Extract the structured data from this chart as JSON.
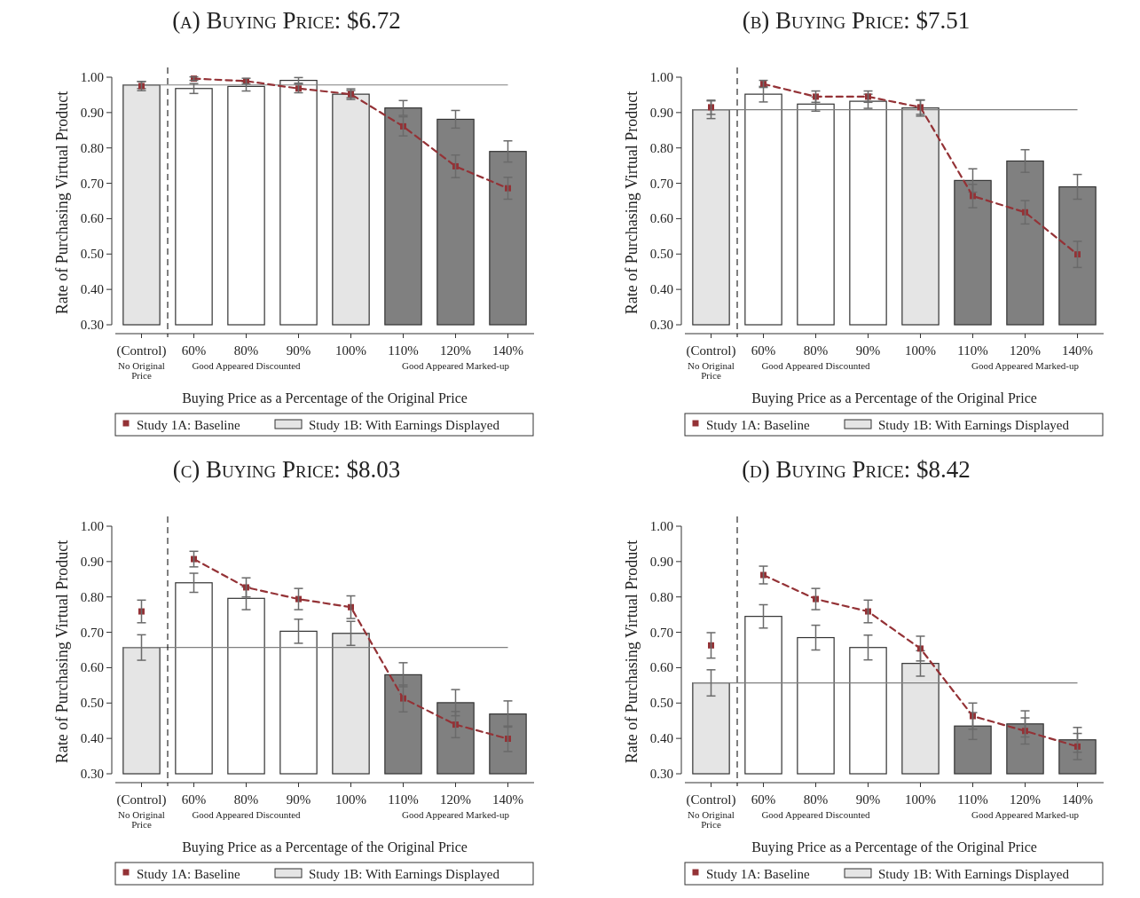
{
  "chart_data": [
    {
      "type": "bar",
      "title": "(a) Buying Price: $6.72",
      "xlabel": "Buying Price as a Percentage of the Original Price",
      "ylabel": "Rate of Purchasing Virtual Product",
      "categories": [
        "(Control)",
        "60%",
        "80%",
        "90%",
        "100%",
        "110%",
        "120%",
        "140%"
      ],
      "ylim": [
        0.3,
        1.0
      ],
      "yticks": [
        {
          "value": 0.3,
          "label": "0.30"
        },
        {
          "value": 0.4,
          "label": "0.40"
        },
        {
          "value": 0.5,
          "label": "0.50"
        },
        {
          "value": 0.6,
          "label": "0.60"
        },
        {
          "value": 0.7,
          "label": "0.70"
        },
        {
          "value": 0.8,
          "label": "0.80"
        },
        {
          "value": 0.9,
          "label": "0.90"
        },
        {
          "value": 1.0,
          "label": "1.00"
        }
      ],
      "legend": "bottom",
      "marker": "square",
      "line_style": "dashed",
      "series": [
        {
          "name": "Study 1A: Baseline",
          "type": "line",
          "color": "#943236",
          "values": [
            null,
            0.996,
            0.989,
            0.968,
            0.952,
            0.861,
            0.748,
            0.686
          ],
          "errors": [
            null,
            0.005,
            0.008,
            0.012,
            0.015,
            0.027,
            0.032,
            0.031
          ]
        },
        {
          "type": "scatter",
          "color": "#943236",
          "values": [
            0.975,
            null,
            null,
            null,
            null,
            null,
            null,
            null
          ],
          "errors": [
            0.013,
            null,
            null,
            null,
            null,
            null,
            null,
            null
          ]
        },
        {
          "name": "Study 1B: With Earnings Displayed",
          "color": "#e5e5e5",
          "colors": [
            "#e5e5e5",
            "#ffffff",
            "#ffffff",
            "#ffffff",
            "#e5e5e5",
            "#808080",
            "#808080",
            "#808080"
          ],
          "values": [
            0.978,
            0.968,
            0.974,
            0.991,
            0.952,
            0.913,
            0.881,
            0.79
          ],
          "errors": [
            0.01,
            0.014,
            0.013,
            0.008,
            0.01,
            0.021,
            0.025,
            0.03
          ]
        }
      ],
      "ref_lines": [
        {
          "axis": "y",
          "value": 0.978,
          "color": "#7f7f7f"
        }
      ],
      "annotations": [
        "No Original Price",
        "Good Appeared Discounted",
        "Good Appeared Marked-up"
      ]
    },
    {
      "type": "bar",
      "title": "(b) Buying Price: $7.51",
      "xlabel": "Buying Price as a Percentage of the Original Price",
      "ylabel": "Rate of Purchasing Virtual Product",
      "categories": [
        "(Control)",
        "60%",
        "80%",
        "90%",
        "100%",
        "110%",
        "120%",
        "140%"
      ],
      "ylim": [
        0.3,
        1.0
      ],
      "yticks": [
        {
          "value": 0.3,
          "label": "0.30"
        },
        {
          "value": 0.4,
          "label": "0.40"
        },
        {
          "value": 0.5,
          "label": "0.50"
        },
        {
          "value": 0.6,
          "label": "0.60"
        },
        {
          "value": 0.7,
          "label": "0.70"
        },
        {
          "value": 0.8,
          "label": "0.80"
        },
        {
          "value": 0.9,
          "label": "0.90"
        },
        {
          "value": 1.0,
          "label": "1.00"
        }
      ],
      "legend": "bottom",
      "marker": "square",
      "line_style": "dashed",
      "series": [
        {
          "name": "Study 1A: Baseline",
          "type": "line",
          "color": "#943236",
          "values": [
            null,
            0.981,
            0.945,
            0.945,
            0.915,
            0.664,
            0.618,
            0.499
          ],
          "errors": [
            null,
            0.01,
            0.016,
            0.016,
            0.02,
            0.033,
            0.033,
            0.037
          ]
        },
        {
          "type": "scatter",
          "color": "#943236",
          "values": [
            0.915,
            null,
            null,
            null,
            null,
            null,
            null,
            null
          ],
          "errors": [
            0.02,
            null,
            null,
            null,
            null,
            null,
            null,
            null
          ]
        },
        {
          "name": "Study 1B: With Earnings Displayed",
          "color": "#e5e5e5",
          "colors": [
            "#e5e5e5",
            "#ffffff",
            "#ffffff",
            "#ffffff",
            "#e5e5e5",
            "#808080",
            "#808080",
            "#808080"
          ],
          "values": [
            0.908,
            0.952,
            0.924,
            0.932,
            0.913,
            0.708,
            0.763,
            0.69
          ],
          "errors": [
            0.025,
            0.022,
            0.02,
            0.02,
            0.023,
            0.033,
            0.032,
            0.035
          ]
        }
      ],
      "ref_lines": [
        {
          "axis": "y",
          "value": 0.908,
          "color": "#7f7f7f"
        }
      ],
      "annotations": [
        "No Original Price",
        "Good Appeared Discounted",
        "Good Appeared Marked-up"
      ]
    },
    {
      "type": "bar",
      "title": "(c) Buying Price: $8.03",
      "xlabel": "Buying Price as a Percentage of the Original Price",
      "ylabel": "Rate of Purchasing Virtual Product",
      "categories": [
        "(Control)",
        "60%",
        "80%",
        "90%",
        "100%",
        "110%",
        "120%",
        "140%"
      ],
      "ylim": [
        0.3,
        1.0
      ],
      "yticks": [
        {
          "value": 0.3,
          "label": "0.30"
        },
        {
          "value": 0.4,
          "label": "0.40"
        },
        {
          "value": 0.5,
          "label": "0.50"
        },
        {
          "value": 0.6,
          "label": "0.60"
        },
        {
          "value": 0.7,
          "label": "0.70"
        },
        {
          "value": 0.8,
          "label": "0.80"
        },
        {
          "value": 0.9,
          "label": "0.90"
        },
        {
          "value": 1.0,
          "label": "1.00"
        }
      ],
      "legend": "bottom",
      "marker": "square",
      "line_style": "dashed",
      "series": [
        {
          "name": "Study 1A: Baseline",
          "type": "line",
          "color": "#943236",
          "values": [
            null,
            0.907,
            0.827,
            0.794,
            0.771,
            0.513,
            0.439,
            0.399
          ],
          "errors": [
            null,
            0.022,
            0.027,
            0.03,
            0.032,
            0.038,
            0.037,
            0.036
          ]
        },
        {
          "type": "scatter",
          "color": "#943236",
          "values": [
            0.759,
            null,
            null,
            null,
            null,
            null,
            null,
            null
          ],
          "errors": [
            0.032,
            null,
            null,
            null,
            null,
            null,
            null,
            null
          ]
        },
        {
          "name": "Study 1B: With Earnings Displayed",
          "color": "#e5e5e5",
          "colors": [
            "#e5e5e5",
            "#ffffff",
            "#ffffff",
            "#ffffff",
            "#e5e5e5",
            "#808080",
            "#808080",
            "#808080"
          ],
          "values": [
            0.657,
            0.84,
            0.796,
            0.703,
            0.697,
            0.58,
            0.501,
            0.469
          ],
          "errors": [
            0.036,
            0.027,
            0.032,
            0.034,
            0.034,
            0.034,
            0.037,
            0.037
          ]
        }
      ],
      "ref_lines": [
        {
          "axis": "y",
          "value": 0.657,
          "color": "#7f7f7f"
        }
      ],
      "annotations": [
        "No Original Price",
        "Good Appeared Discounted",
        "Good Appeared Marked-up"
      ]
    },
    {
      "type": "bar",
      "title": "(d) Buying Price: $8.42",
      "xlabel": "Buying Price as a Percentage of the Original Price",
      "ylabel": "Rate of Purchasing Virtual Product",
      "categories": [
        "(Control)",
        "60%",
        "80%",
        "90%",
        "100%",
        "110%",
        "120%",
        "140%"
      ],
      "ylim": [
        0.3,
        1.0
      ],
      "yticks": [
        {
          "value": 0.3,
          "label": "0.30"
        },
        {
          "value": 0.4,
          "label": "0.40"
        },
        {
          "value": 0.5,
          "label": "0.50"
        },
        {
          "value": 0.6,
          "label": "0.60"
        },
        {
          "value": 0.7,
          "label": "0.70"
        },
        {
          "value": 0.8,
          "label": "0.80"
        },
        {
          "value": 0.9,
          "label": "0.90"
        },
        {
          "value": 1.0,
          "label": "1.00"
        }
      ],
      "legend": "bottom",
      "marker": "square",
      "line_style": "dashed",
      "series": [
        {
          "name": "Study 1A: Baseline",
          "type": "line",
          "color": "#943236",
          "values": [
            null,
            0.862,
            0.794,
            0.759,
            0.654,
            0.463,
            0.421,
            0.377
          ],
          "errors": [
            null,
            0.025,
            0.03,
            0.032,
            0.035,
            0.037,
            0.037,
            0.037
          ]
        },
        {
          "type": "scatter",
          "color": "#943236",
          "values": [
            0.663,
            null,
            null,
            null,
            null,
            null,
            null,
            null
          ],
          "errors": [
            0.036,
            null,
            null,
            null,
            null,
            null,
            null,
            null
          ]
        },
        {
          "name": "Study 1B: With Earnings Displayed",
          "color": "#e5e5e5",
          "colors": [
            "#e5e5e5",
            "#ffffff",
            "#ffffff",
            "#ffffff",
            "#e5e5e5",
            "#808080",
            "#808080",
            "#808080"
          ],
          "values": [
            0.557,
            0.745,
            0.685,
            0.657,
            0.612,
            0.435,
            0.441,
            0.396
          ],
          "errors": [
            0.037,
            0.033,
            0.035,
            0.035,
            0.036,
            0.038,
            0.037,
            0.035
          ]
        }
      ],
      "ref_lines": [
        {
          "axis": "y",
          "value": 0.557,
          "color": "#7f7f7f"
        }
      ],
      "annotations": [
        "No Original Price",
        "Good Appeared Discounted",
        "Good Appeared Marked-up"
      ]
    }
  ]
}
